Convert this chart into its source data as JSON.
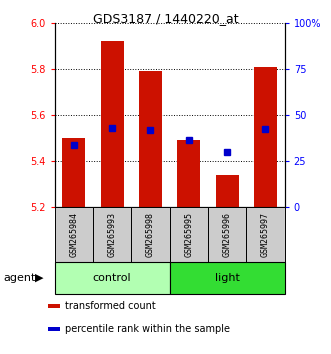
{
  "title": "GDS3187 / 1440220_at",
  "samples": [
    "GSM265984",
    "GSM265993",
    "GSM265998",
    "GSM265995",
    "GSM265996",
    "GSM265997"
  ],
  "red_bar_tops": [
    5.5,
    5.92,
    5.79,
    5.49,
    5.34,
    5.81
  ],
  "blue_values_left": [
    5.47,
    5.545,
    5.535,
    5.49,
    5.44,
    5.54
  ],
  "bar_base": 5.2,
  "ylim_left": [
    5.2,
    6.0
  ],
  "ylim_right": [
    0,
    100
  ],
  "yticks_left": [
    5.2,
    5.4,
    5.6,
    5.8,
    6.0
  ],
  "yticks_right": [
    0,
    25,
    50,
    75,
    100
  ],
  "ytick_right_labels": [
    "0",
    "25",
    "50",
    "75",
    "100%"
  ],
  "bar_color": "#cc1100",
  "blue_color": "#0000cc",
  "bar_width": 0.6,
  "control_color": "#b2ffb2",
  "light_color": "#33dd33",
  "gray_color": "#cccccc",
  "agent_label": "agent",
  "legend_items": [
    {
      "color": "#cc1100",
      "label": "transformed count"
    },
    {
      "color": "#0000cc",
      "label": "percentile rank within the sample"
    }
  ]
}
